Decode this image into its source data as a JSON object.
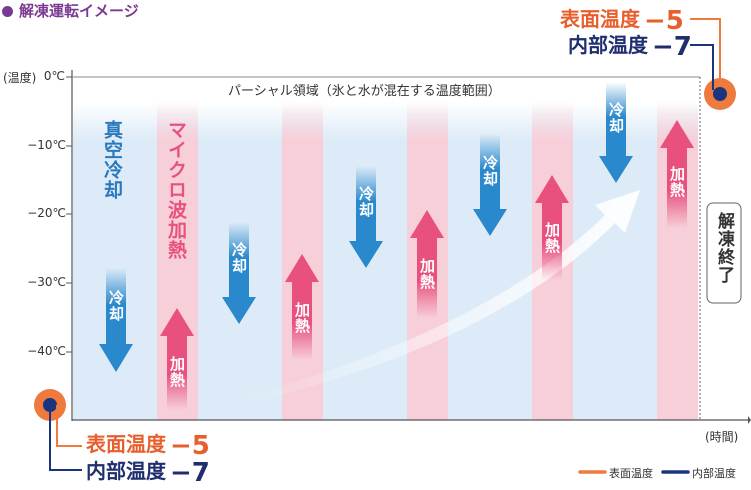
{
  "header": {
    "title": "解凍運転イメージ"
  },
  "colors": {
    "cooling": "#2a88cc",
    "heating": "#e8507e",
    "surface": "#ef7a3e",
    "inner": "#1a3480",
    "cool_band": "#dcebf7",
    "heat_band": "#f7cfd9"
  },
  "axis": {
    "y_unit": "(温度)",
    "y_ticks": [
      "0℃",
      "−10℃",
      "−20℃",
      "−30℃",
      "−40℃"
    ],
    "x_unit": "(時間)"
  },
  "partial_zone_label": "パーシャル領域（氷と水が混在する温度範囲）",
  "vertical_labels": {
    "vacuum_cooling": "真空冷却",
    "microwave_heating": "マイクロ波加熱",
    "thaw_complete": "解凍終了"
  },
  "arrows": {
    "cool": "冷却",
    "heat": "加熱"
  },
  "start_state": {
    "surface_label": "表面温度",
    "surface_value": "−5",
    "inner_label": "内部温度",
    "inner_value": "−7"
  },
  "end_state": {
    "surface_label": "表面温度",
    "surface_value": "−5",
    "inner_label": "内部温度",
    "inner_value": "−7"
  },
  "legend": {
    "surface": "表面温度",
    "inner": "内部温度"
  }
}
